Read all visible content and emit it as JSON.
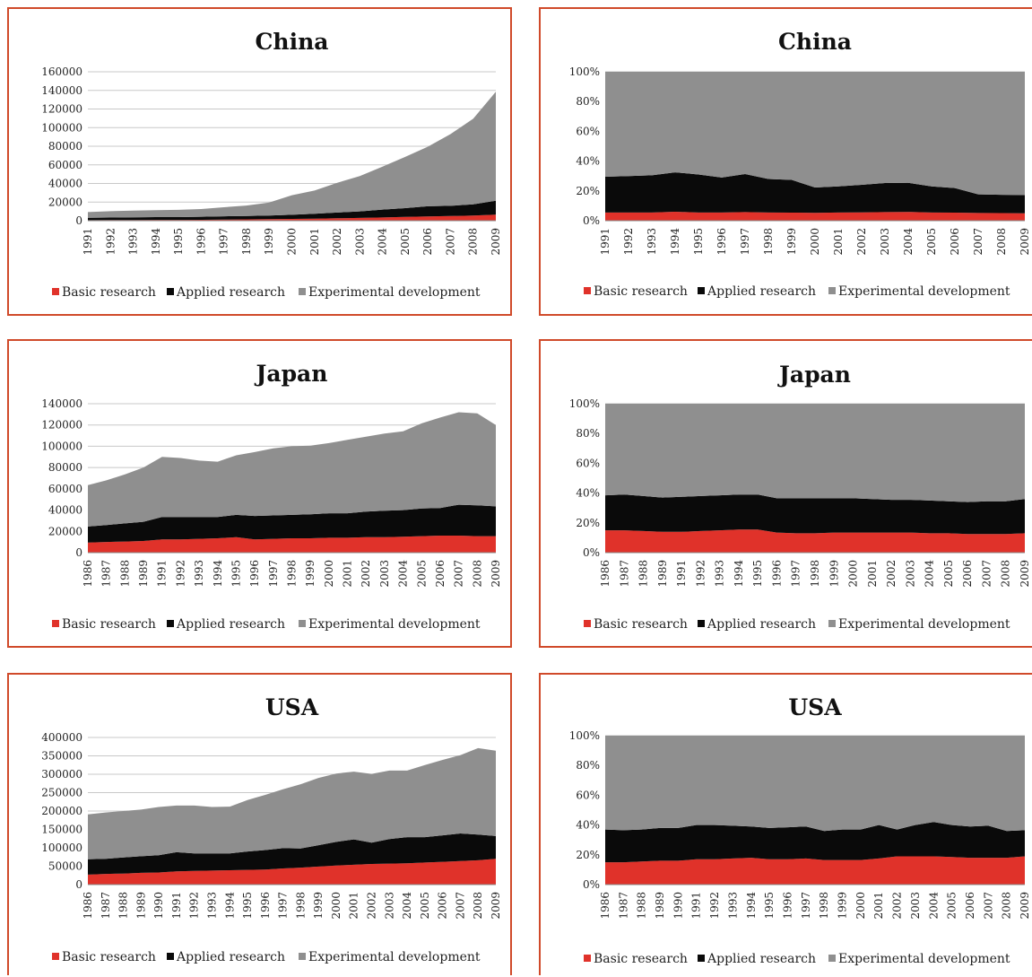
{
  "colors": {
    "basic": "#e0322a",
    "applied": "#0a0a0a",
    "experimental": "#8f8f8f",
    "frame": "#d04a2a",
    "grid": "#c8c8c8"
  },
  "legend_labels": [
    "Basic research",
    "Applied research",
    "Experimental development"
  ],
  "chart_data": [
    {
      "type": "area",
      "stacked": true,
      "title": "China",
      "x": [
        "1991",
        "1992",
        "1993",
        "1994",
        "1995",
        "1996",
        "1997",
        "1998",
        "1999",
        "2000",
        "2001",
        "2002",
        "2003",
        "2004",
        "2005",
        "2006",
        "2007",
        "2008",
        "2009"
      ],
      "y_ticks": [
        "0",
        "20000",
        "40000",
        "60000",
        "80000",
        "100000",
        "120000",
        "140000",
        "160000"
      ],
      "ylim": [
        0,
        160000
      ],
      "legend": "bottom",
      "series": [
        {
          "name": "Basic research",
          "values": [
            600,
            700,
            800,
            900,
            900,
            1000,
            1200,
            1400,
            1600,
            1900,
            2200,
            2600,
            3000,
            3500,
            4000,
            4500,
            5000,
            5500,
            6500
          ]
        },
        {
          "name": "Applied research",
          "values": [
            2500,
            2700,
            2900,
            3000,
            3000,
            3200,
            3500,
            3700,
            4000,
            4500,
            5200,
            6200,
            7000,
            8500,
            9500,
            11000,
            11000,
            12000,
            15000
          ]
        },
        {
          "name": "Experimental development",
          "values": [
            6200,
            6800,
            7200,
            7500,
            7800,
            8300,
            9800,
            11200,
            14000,
            21000,
            25000,
            32000,
            38000,
            46000,
            55000,
            64000,
            77000,
            92000,
            117000
          ]
        }
      ]
    },
    {
      "type": "area",
      "stacked": true,
      "percent": true,
      "title": "China",
      "x": [
        "1991",
        "1992",
        "1993",
        "1994",
        "1995",
        "1996",
        "1997",
        "1998",
        "1999",
        "2000",
        "2001",
        "2002",
        "2003",
        "2004",
        "2005",
        "2006",
        "2007",
        "2008",
        "2009"
      ],
      "y_ticks": [
        "0%",
        "20%",
        "40%",
        "60%",
        "80%",
        "100%"
      ],
      "ylim": [
        0,
        100
      ],
      "legend": "bottom",
      "series": [
        {
          "name": "Basic research",
          "values": [
            5.5,
            5.5,
            5.5,
            6,
            5.5,
            5.5,
            5.8,
            5.5,
            5.4,
            5.3,
            5.5,
            5.6,
            5.8,
            5.9,
            5.5,
            5.4,
            5.2,
            5.1,
            5.0
          ]
        },
        {
          "name": "Applied research",
          "values": [
            24,
            24.5,
            25,
            26.5,
            25.5,
            23.5,
            25.5,
            22.5,
            22,
            17,
            17.5,
            18.5,
            19.5,
            19.5,
            17.5,
            16.5,
            12.5,
            12.3,
            12.2
          ]
        },
        {
          "name": "Experimental development",
          "values": [
            70.5,
            70,
            69.5,
            67.5,
            69,
            71,
            68.7,
            72,
            72.6,
            77.7,
            77,
            75.9,
            74.7,
            74.6,
            77,
            78.1,
            82.3,
            82.6,
            82.8
          ]
        }
      ]
    },
    {
      "type": "area",
      "stacked": true,
      "title": "Japan",
      "x": [
        "1986",
        "1987",
        "1988",
        "1989",
        "1991",
        "1992",
        "1993",
        "1994",
        "1995",
        "1996",
        "1997",
        "1998",
        "1999",
        "2000",
        "2001",
        "2002",
        "2003",
        "2004",
        "2005",
        "2006",
        "2007",
        "2008",
        "2009"
      ],
      "y_ticks": [
        "0",
        "20000",
        "40000",
        "60000",
        "80000",
        "100000",
        "120000",
        "140000"
      ],
      "ylim": [
        0,
        140000
      ],
      "legend": "bottom",
      "series": [
        {
          "name": "Basic research",
          "values": [
            9500,
            10000,
            10500,
            11000,
            12500,
            12500,
            13000,
            13500,
            14500,
            12500,
            13000,
            13500,
            13500,
            14000,
            14000,
            14500,
            14500,
            15000,
            15500,
            16000,
            16000,
            15500,
            15500
          ]
        },
        {
          "name": "Applied research",
          "values": [
            15000,
            16000,
            17000,
            18000,
            21000,
            21000,
            20500,
            20000,
            21000,
            22000,
            22000,
            22000,
            22500,
            23000,
            23000,
            24000,
            25000,
            25000,
            26000,
            26000,
            29000,
            29000,
            28000
          ]
        },
        {
          "name": "Experimental development",
          "values": [
            39000,
            42000,
            46000,
            51000,
            56500,
            55500,
            53000,
            52000,
            56000,
            60000,
            63000,
            64500,
            64500,
            66000,
            69000,
            70500,
            72500,
            74000,
            80000,
            85000,
            87000,
            86500,
            76500
          ]
        }
      ]
    },
    {
      "type": "area",
      "stacked": true,
      "percent": true,
      "title": "Japan",
      "x": [
        "1986",
        "1987",
        "1988",
        "1989",
        "1991",
        "1992",
        "1993",
        "1994",
        "1995",
        "1996",
        "1997",
        "1998",
        "1999",
        "2000",
        "2001",
        "2002",
        "2003",
        "2004",
        "2005",
        "2006",
        "2007",
        "2008",
        "2009"
      ],
      "y_ticks": [
        "0%",
        "20%",
        "40%",
        "60%",
        "80%",
        "100%"
      ],
      "ylim": [
        0,
        100
      ],
      "legend": "bottom",
      "series": [
        {
          "name": "Basic research",
          "values": [
            15,
            15,
            14.5,
            14,
            14,
            14.5,
            15,
            15.5,
            15.5,
            13.5,
            13,
            13,
            13.5,
            13.5,
            13.5,
            13.5,
            13.5,
            13,
            13,
            12.5,
            12.5,
            12.5,
            13
          ]
        },
        {
          "name": "Applied research",
          "values": [
            23.5,
            24,
            23.5,
            23,
            23.5,
            23.5,
            23.5,
            23.5,
            23.5,
            23,
            23.5,
            23.5,
            23,
            23,
            22.5,
            22,
            22,
            22,
            21.5,
            21.5,
            22,
            22,
            23
          ]
        },
        {
          "name": "Experimental development",
          "values": [
            61.5,
            61,
            62,
            63,
            62.5,
            62,
            61.5,
            61,
            61,
            63.5,
            63.5,
            63.5,
            63.5,
            63.5,
            64,
            64.5,
            64.5,
            65,
            65.5,
            66,
            65.5,
            65.5,
            64
          ]
        }
      ]
    },
    {
      "type": "area",
      "stacked": true,
      "title": "USA",
      "x": [
        "1986",
        "1987",
        "1988",
        "1989",
        "1990",
        "1991",
        "1992",
        "1993",
        "1994",
        "1995",
        "1996",
        "1997",
        "1998",
        "1999",
        "2000",
        "2001",
        "2002",
        "2003",
        "2004",
        "2005",
        "2006",
        "2007",
        "2008",
        "2009"
      ],
      "y_ticks": [
        "0",
        "50000",
        "100000",
        "150000",
        "200000",
        "250000",
        "300000",
        "350000",
        "400000"
      ],
      "ylim": [
        0,
        400000
      ],
      "legend": "bottom",
      "series": [
        {
          "name": "Basic research",
          "values": [
            27000,
            29000,
            30000,
            32000,
            33000,
            36000,
            37000,
            38000,
            39000,
            40000,
            41000,
            44000,
            46000,
            49000,
            52000,
            54000,
            56000,
            57000,
            58000,
            60000,
            62000,
            64000,
            66000,
            70000
          ]
        },
        {
          "name": "Applied research",
          "values": [
            42000,
            41000,
            44000,
            45000,
            47000,
            52000,
            48000,
            47000,
            46000,
            50000,
            53000,
            55000,
            52000,
            58000,
            64000,
            69000,
            58000,
            67000,
            71000,
            69000,
            72000,
            75000,
            70000,
            62000
          ]
        },
        {
          "name": "Experimental development",
          "values": [
            122000,
            126000,
            126000,
            127000,
            131000,
            127000,
            130000,
            126000,
            127000,
            140000,
            150000,
            160000,
            175000,
            183000,
            186000,
            184000,
            187000,
            186000,
            181000,
            196000,
            205000,
            213000,
            235000,
            232000
          ]
        }
      ]
    },
    {
      "type": "area",
      "stacked": true,
      "percent": true,
      "title": "USA",
      "x": [
        "1986",
        "1987",
        "1988",
        "1989",
        "1990",
        "1991",
        "1992",
        "1993",
        "1994",
        "1995",
        "1996",
        "1997",
        "1998",
        "1999",
        "2000",
        "2001",
        "2002",
        "2003",
        "2004",
        "2005",
        "2006",
        "2007",
        "2008",
        "2009"
      ],
      "y_ticks": [
        "0%",
        "20%",
        "40%",
        "60%",
        "80%",
        "100%"
      ],
      "ylim": [
        0,
        100
      ],
      "legend": "bottom",
      "series": [
        {
          "name": "Basic research",
          "values": [
            15,
            15,
            15.5,
            16,
            16,
            17,
            17,
            17.5,
            18,
            17,
            17,
            17.5,
            16.5,
            16.5,
            16.5,
            17.5,
            19,
            19,
            19,
            18.5,
            18,
            18,
            18,
            19
          ]
        },
        {
          "name": "Applied research",
          "values": [
            22,
            21.5,
            21.5,
            22,
            22,
            23,
            23,
            22,
            21,
            21,
            21.5,
            21.5,
            19.5,
            20.5,
            20.5,
            22.5,
            18,
            21,
            23,
            21.5,
            21,
            21.5,
            18,
            17.5
          ]
        },
        {
          "name": "Experimental development",
          "values": [
            63,
            63.5,
            63,
            62,
            62,
            60,
            60,
            60.5,
            61,
            62,
            61.5,
            61,
            64,
            63,
            63,
            60,
            63,
            60,
            58,
            60,
            61,
            60.5,
            64,
            63.5
          ]
        }
      ]
    }
  ]
}
